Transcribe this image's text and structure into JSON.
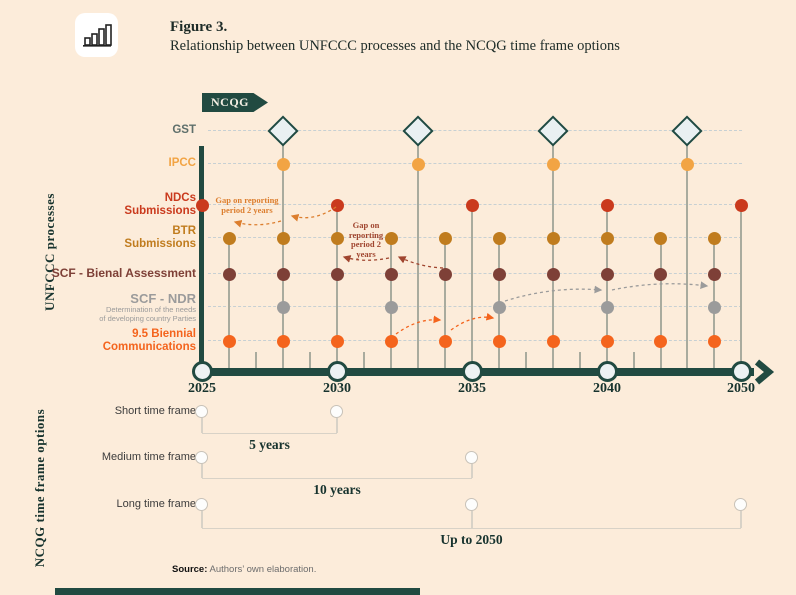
{
  "header": {
    "icon": "bar-chart-icon",
    "figure_label": "Figure 3.",
    "figure_title": "Relationship between UNFCCC processes and the NCQG time frame options"
  },
  "colors": {
    "background": "#fcecda",
    "dark_teal": "#214a41",
    "gst": "#5e6f6b",
    "ipcc": "#f2a444",
    "ndc": "#ca3a1d",
    "btr": "#c07c1e",
    "scf_ba": "#7e4037",
    "scf_ndr": "#9b9b9b",
    "bc95": "#f4641d"
  },
  "chart_data": {
    "type": "timeline",
    "banner_label": "NCQG",
    "y_axis_label": "UNFCCC processes",
    "bottom_section_label": "NCQG time frame options",
    "x_ticks": [
      2025,
      2030,
      2035,
      2040,
      2050
    ],
    "x_tick_labels": [
      "2025",
      "2030",
      "2035",
      "2040",
      "2050"
    ],
    "rows": [
      {
        "id": "gst",
        "label_lines": [
          "GST"
        ],
        "color": "#5e6f6b",
        "marker": "diamond",
        "years": [
          2028,
          2033,
          2038,
          2046
        ]
      },
      {
        "id": "ipcc",
        "label_lines": [
          "IPCC"
        ],
        "color": "#f2a444",
        "marker": "dot",
        "years": [
          2028,
          2033,
          2038,
          2046
        ]
      },
      {
        "id": "ndc",
        "label_lines": [
          "NDCs",
          "Submissions"
        ],
        "color": "#ca3a1d",
        "marker": "dot",
        "years": [
          2025,
          2030,
          2035,
          2040,
          2050
        ]
      },
      {
        "id": "btr",
        "label_lines": [
          "BTR",
          "Submissions"
        ],
        "color": "#c07c1e",
        "marker": "dot",
        "years": [
          2026,
          2028,
          2030,
          2032,
          2034,
          2036,
          2038,
          2040,
          2044,
          2048
        ]
      },
      {
        "id": "scf_ba",
        "label_lines": [
          "SCF - Bienal Assessment"
        ],
        "color": "#7e4037",
        "marker": "dot",
        "years": [
          2026,
          2028,
          2030,
          2032,
          2034,
          2036,
          2038,
          2040,
          2044,
          2048
        ]
      },
      {
        "id": "scf_ndr",
        "label_lines": [
          "SCF - NDR"
        ],
        "sublabel_lines": [
          "Determination of the needs",
          "of developing country Parties"
        ],
        "color": "#9b9b9b",
        "marker": "dot",
        "years": [
          2028,
          2032,
          2036,
          2040,
          2048
        ]
      },
      {
        "id": "bc95",
        "label_lines": [
          "9.5 Biennial",
          "Communications"
        ],
        "color": "#f4641d",
        "marker": "dot",
        "years": [
          2026,
          2028,
          2030,
          2032,
          2034,
          2036,
          2038,
          2040,
          2044,
          2048
        ]
      }
    ],
    "annotations": [
      {
        "id": "gap-ndc-reporting",
        "text": "Gap on reporting period 2 years",
        "lines": [
          "Gap on reporting",
          "period 2 years"
        ],
        "color": "#dc7e2e"
      },
      {
        "id": "gap-btr-reporting",
        "text": "Gap on reporting period 2 years",
        "lines": [
          "Gap on",
          "reporting",
          "period 2",
          "years"
        ],
        "color": "#a0452f"
      }
    ],
    "time_frame_options": [
      {
        "label": "Short time frame",
        "duration": "5 years",
        "years": [
          2025,
          2030
        ]
      },
      {
        "label": "Medium time frame",
        "duration": "10 years",
        "years": [
          2025,
          2035
        ]
      },
      {
        "label": "Long time frame",
        "duration": "Up to 2050",
        "years": [
          2025,
          2035,
          2050
        ]
      }
    ]
  },
  "source": {
    "label": "Source:",
    "text": "Authors’ own elaboration."
  }
}
